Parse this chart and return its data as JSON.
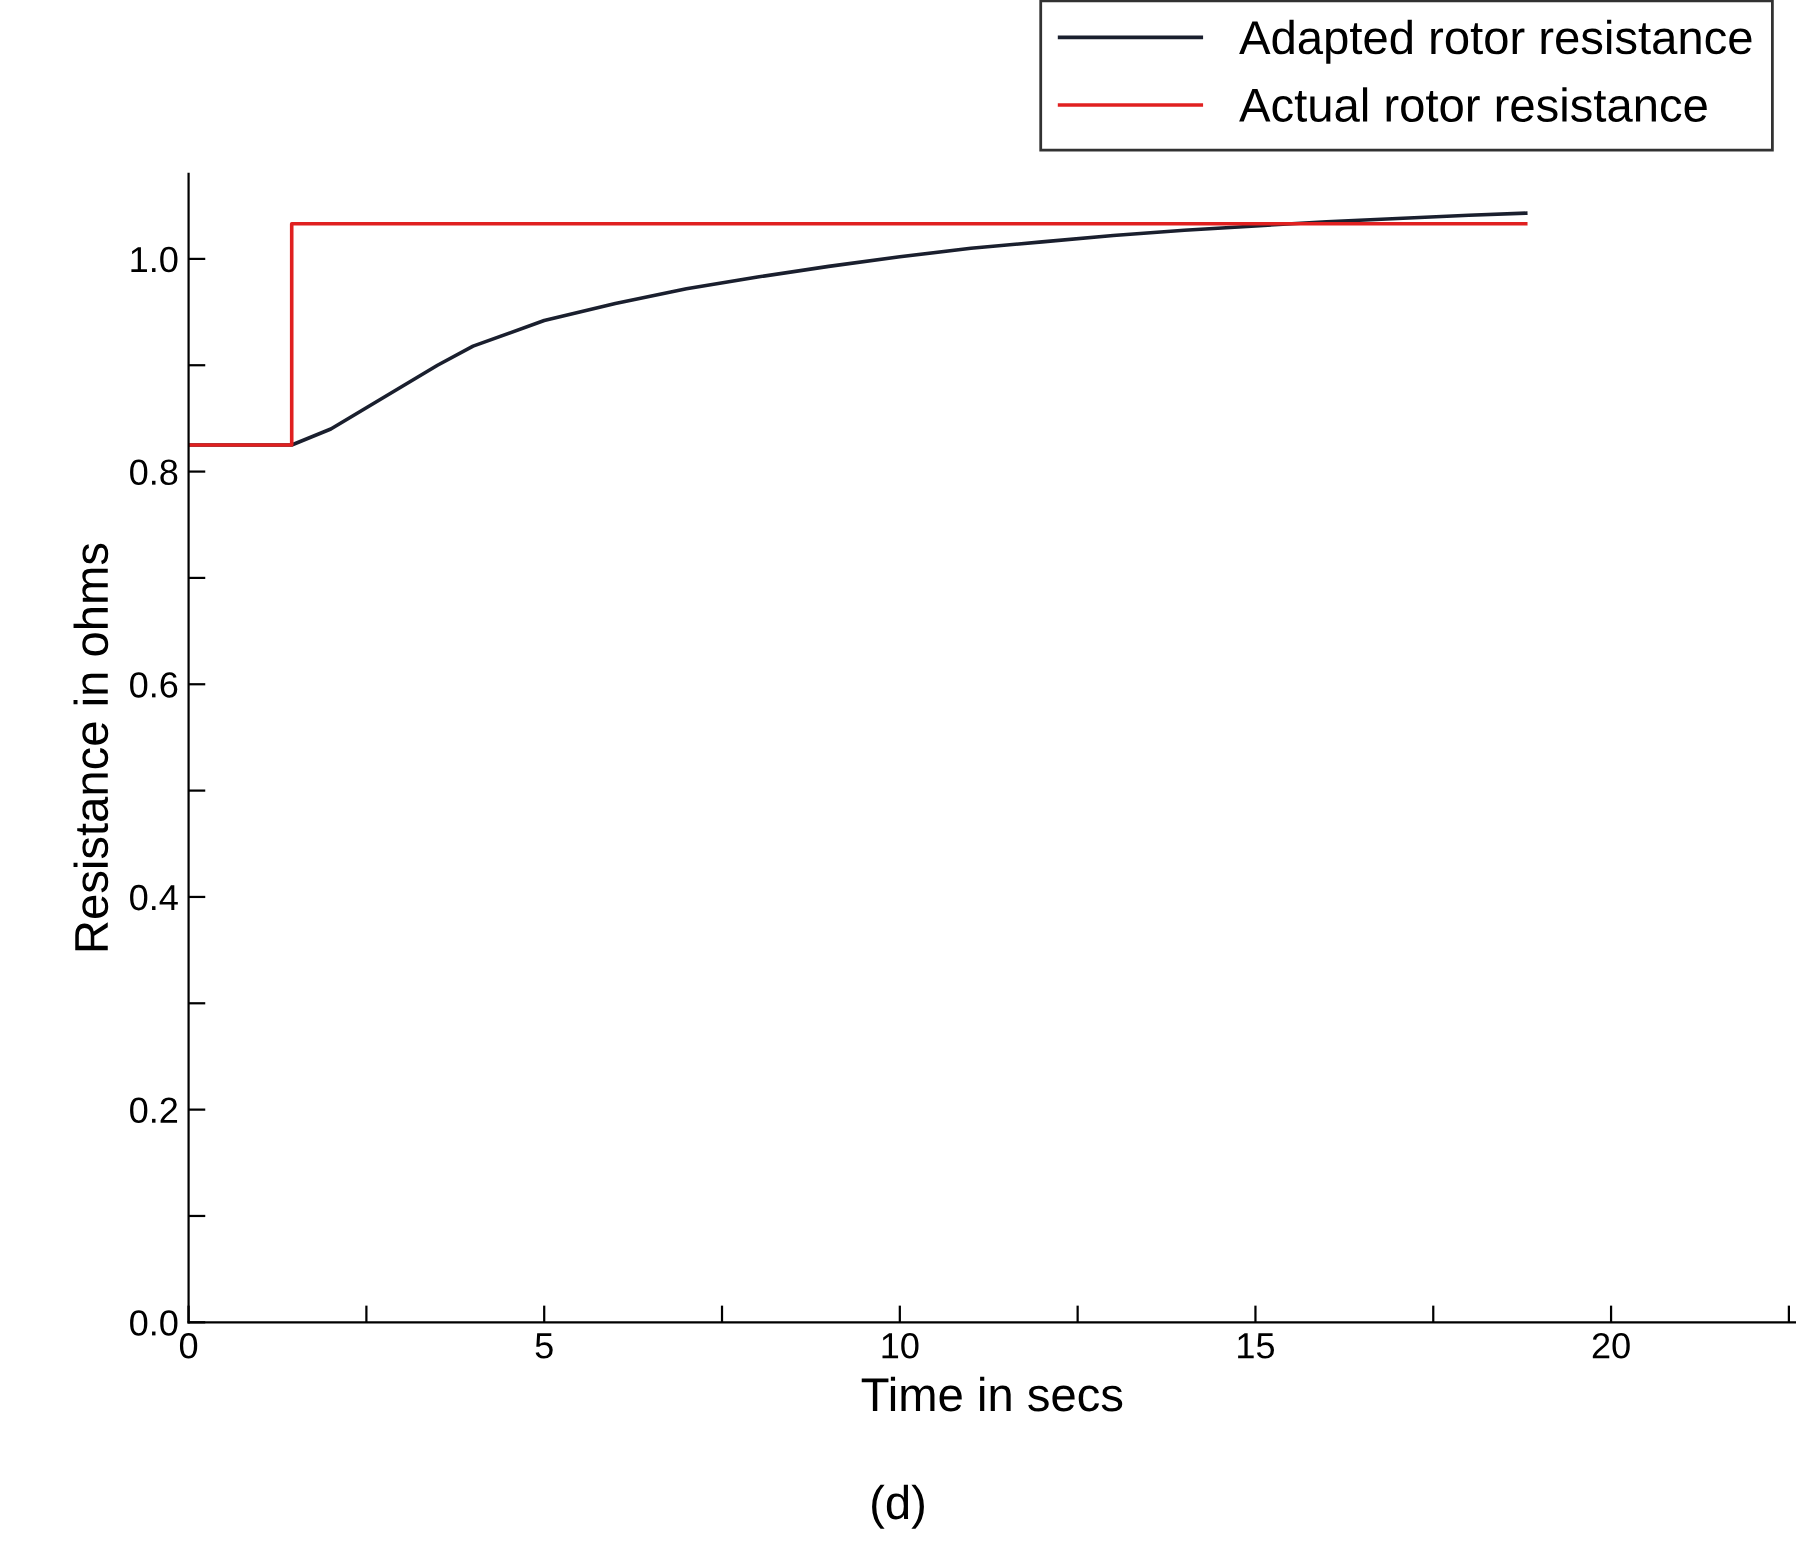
{
  "chart_data": {
    "type": "line",
    "xlabel": "Time in secs",
    "ylabel": "Resistance in ohms",
    "annotations": [
      "(d)"
    ],
    "legend": "top right",
    "grid": false,
    "xlim": [
      0,
      22.6
    ],
    "xticks": [
      0,
      {
        "value": 2.5,
        "label": null
      },
      5,
      {
        "value": 7.5,
        "label": null
      },
      10,
      {
        "value": 12.5,
        "label": null
      },
      15,
      {
        "value": 17.5,
        "label": null
      },
      20,
      {
        "value": 22.5,
        "label": null
      }
    ],
    "ylim": [
      0,
      1.08
    ],
    "yticks": [
      {
        "value": 0,
        "label": "0.0"
      },
      {
        "value": 0.1,
        "label": null
      },
      {
        "value": 0.2,
        "label": "0.2"
      },
      {
        "value": 0.3,
        "label": null
      },
      {
        "value": 0.4,
        "label": "0.4"
      },
      {
        "value": 0.5,
        "label": null
      },
      {
        "value": 0.6,
        "label": "0.6"
      },
      {
        "value": 0.7,
        "label": null
      },
      {
        "value": 0.8,
        "label": "0.8"
      },
      {
        "value": 0.9,
        "label": null
      },
      {
        "value": 1.0,
        "label": "1.0"
      }
    ],
    "series": [
      {
        "name": "Adapted rotor resistance",
        "color": "#1a1f2e",
        "x": [
          0,
          1.45,
          2,
          2.5,
          3,
          3.5,
          4,
          5,
          6,
          7,
          8,
          9,
          10,
          11,
          12,
          13,
          14,
          15,
          16,
          17,
          18,
          18.8
        ],
        "values": [
          0.825,
          0.825,
          0.84,
          0.86,
          0.88,
          0.9,
          0.918,
          0.942,
          0.958,
          0.972,
          0.983,
          0.993,
          1.002,
          1.01,
          1.016,
          1.022,
          1.027,
          1.031,
          1.035,
          1.038,
          1.041,
          1.043
        ]
      },
      {
        "name": "Actual rotor resistance",
        "color": "#e02020",
        "x": [
          0,
          1.45,
          1.45,
          18.8
        ],
        "values": [
          0.825,
          0.825,
          1.033,
          1.033
        ]
      }
    ]
  }
}
